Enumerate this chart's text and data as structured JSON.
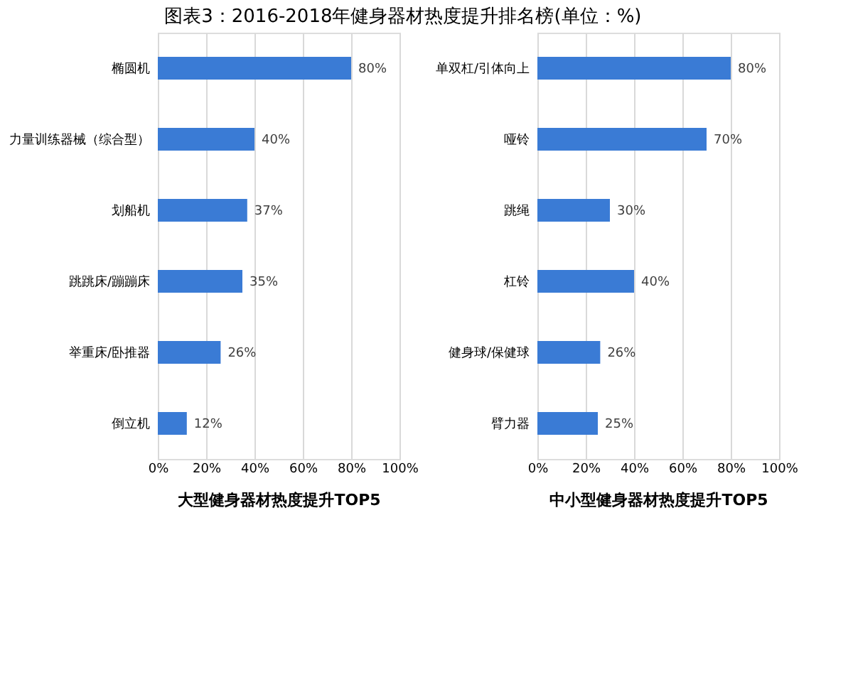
{
  "chart_data": [
    {
      "type": "bar",
      "orientation": "horizontal",
      "title": "图表3：2016-2018年健身器材热度提升排名榜(单位：%)",
      "xlabel": "大型健身器材热度提升TOP5",
      "categories": [
        "椭圆机",
        "力量训练器械（综合型）",
        "划船机",
        "跳跳床/蹦蹦床",
        "举重床/卧推器",
        "倒立机"
      ],
      "values": [
        80,
        40,
        37,
        35,
        26,
        12
      ],
      "color": "#3a7bd5",
      "value_labels": [
        "80%",
        "40%",
        "37%",
        "35%",
        "26%",
        "12%"
      ],
      "xlim": [
        0,
        100
      ],
      "xticks": [
        {
          "value": 0,
          "label": "0%"
        },
        {
          "value": 20,
          "label": "20%"
        },
        {
          "value": 40,
          "label": "40%"
        },
        {
          "value": 60,
          "label": "60%"
        },
        {
          "value": 80,
          "label": "80%"
        },
        {
          "value": 100,
          "label": "100%"
        }
      ],
      "grid": "x"
    },
    {
      "type": "bar",
      "orientation": "horizontal",
      "xlabel": "中小型健身器材热度提升TOP5",
      "categories": [
        "单双杠/引体向上",
        "哑铃",
        "跳绳",
        "杠铃",
        "健身球/保健球",
        "臂力器"
      ],
      "values": [
        80,
        70,
        30,
        40,
        26,
        25
      ],
      "color": "#3a7bd5",
      "value_labels": [
        "80%",
        "70%",
        "30%",
        "40%",
        "26%",
        "25%"
      ],
      "xlim": [
        0,
        100
      ],
      "xticks": [
        {
          "value": 0,
          "label": "0%"
        },
        {
          "value": 20,
          "label": "20%"
        },
        {
          "value": 40,
          "label": "40%"
        },
        {
          "value": 60,
          "label": "60%"
        },
        {
          "value": 80,
          "label": "80%"
        },
        {
          "value": 100,
          "label": "100%"
        }
      ],
      "grid": "x"
    }
  ]
}
